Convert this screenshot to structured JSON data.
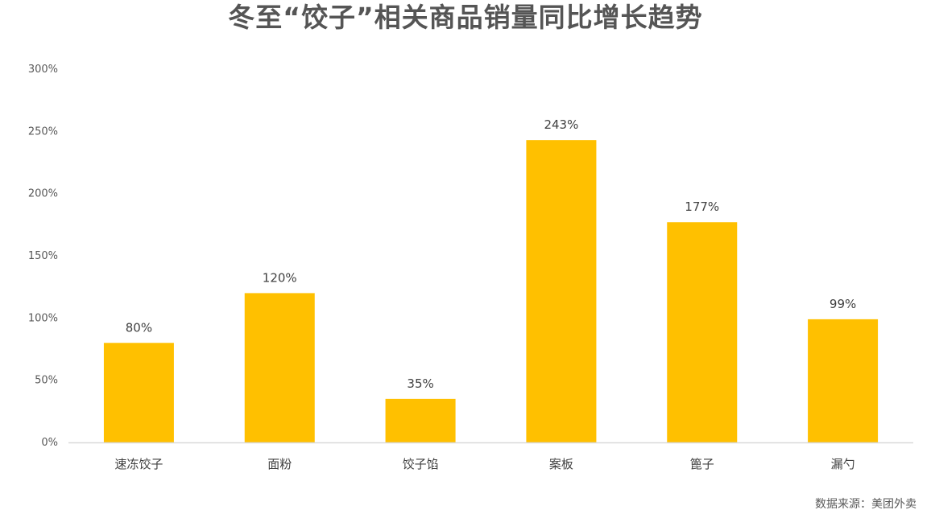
{
  "chart_data": {
    "type": "bar",
    "title": "冬至“饺子”相关商品销量同比增长趋势",
    "categories": [
      "速冻饺子",
      "面粉",
      "饺子馅",
      "案板",
      "篦子",
      "漏勺"
    ],
    "values": [
      80,
      120,
      35,
      243,
      177,
      99
    ],
    "value_labels": [
      "80%",
      "120%",
      "35%",
      "243%",
      "177%",
      "99%"
    ],
    "y_ticks": [
      0,
      50,
      100,
      150,
      200,
      250,
      300
    ],
    "y_tick_labels": [
      "0%",
      "50%",
      "100%",
      "150%",
      "200%",
      "250%",
      "300%"
    ],
    "ylim": [
      0,
      300
    ],
    "xlabel": "",
    "ylabel": "",
    "grid": false,
    "legend": "none",
    "bar_color": "#FFC000",
    "axis_color": "#D9D9D9",
    "label_color": "#404040"
  },
  "source": "数据来源：美团外卖"
}
